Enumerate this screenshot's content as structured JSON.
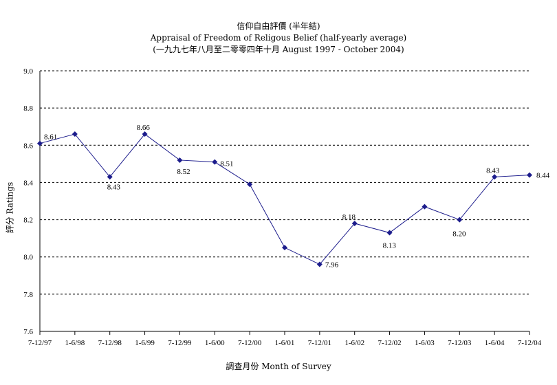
{
  "chart_data": {
    "type": "line",
    "title": "信仰自由評價 (半年結)",
    "subtitle": "Appraisal of Freedom of Religous Belief (half-yearly average)",
    "subtitle2": "(一九九七年八月至二零零四年十月 August 1997 - October 2004)",
    "xlabel": "調查月份 Month of Survey",
    "ylabel": "評分 Ratings",
    "ylim": [
      7.6,
      9.0
    ],
    "yticks": [
      "7.6",
      "7.8",
      "8.0",
      "8.2",
      "8.4",
      "8.6",
      "8.8",
      "9.0"
    ],
    "grid": true,
    "categories": [
      "7-12/97",
      "1-6/98",
      "7-12/98",
      "1-6/99",
      "7-12/99",
      "1-6/00",
      "7-12/00",
      "1-6/01",
      "7-12/01",
      "1-6/02",
      "7-12/02",
      "1-6/03",
      "7-12/03",
      "1-6/04",
      "7-12/04"
    ],
    "series": [
      {
        "values": [
          8.61,
          8.66,
          8.43,
          8.66,
          8.52,
          8.51,
          8.39,
          8.05,
          7.96,
          8.18,
          8.13,
          8.27,
          8.2,
          8.43,
          8.44
        ],
        "color": "#1c1c8c"
      }
    ],
    "data_labels": [
      {
        "index": 0,
        "text": "8.61"
      },
      {
        "index": 2,
        "text": "8.43"
      },
      {
        "index": 3,
        "text": "8.66"
      },
      {
        "index": 4,
        "text": "8.52"
      },
      {
        "index": 5,
        "text": "8.51"
      },
      {
        "index": 8,
        "text": "7.96"
      },
      {
        "index": 9,
        "text": "8.18"
      },
      {
        "index": 10,
        "text": "8.13"
      },
      {
        "index": 12,
        "text": "8.20"
      },
      {
        "index": 13,
        "text": "8.43"
      },
      {
        "index": 14,
        "text": "8.44"
      }
    ]
  }
}
